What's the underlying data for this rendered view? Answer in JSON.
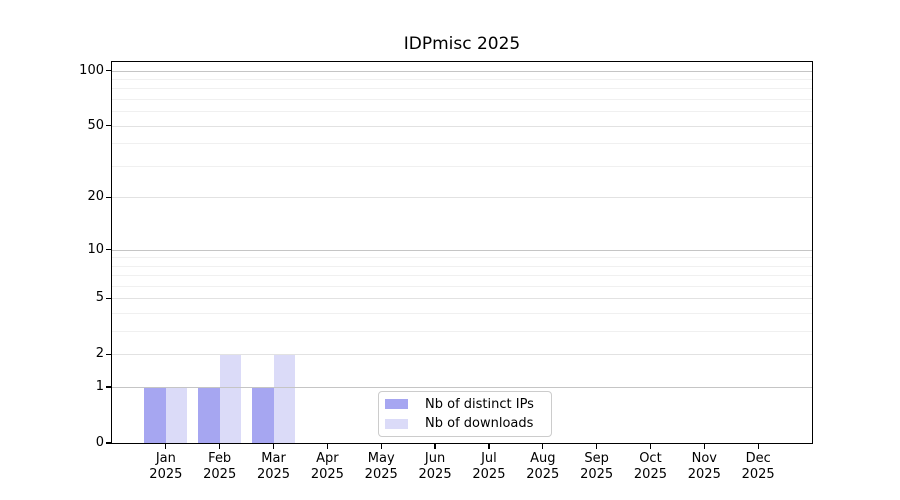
{
  "chart_data": {
    "type": "bar",
    "title": "IDPmisc 2025",
    "categories": [
      "Jan",
      "Feb",
      "Mar",
      "Apr",
      "May",
      "Jun",
      "Jul",
      "Aug",
      "Sep",
      "Oct",
      "Nov",
      "Dec"
    ],
    "x_year_label": "2025",
    "series": [
      {
        "name": "Nb of distinct IPs",
        "color": "#a6a6f1",
        "values": [
          1,
          1,
          1,
          0,
          0,
          0,
          0,
          0,
          0,
          0,
          0,
          0
        ]
      },
      {
        "name": "Nb of downloads",
        "color": "#dbdbf8",
        "values": [
          1,
          2,
          2,
          0,
          0,
          0,
          0,
          0,
          0,
          0,
          0,
          0
        ]
      }
    ],
    "y_axis": {
      "scale": "log1p",
      "ticks": [
        0,
        1,
        2,
        5,
        10,
        20,
        50,
        100
      ],
      "minor_gridlines": [
        3,
        4,
        6,
        7,
        8,
        9,
        30,
        40,
        60,
        70,
        80,
        90
      ],
      "range_top": 112
    },
    "legend": {
      "position": "lower center"
    },
    "grid": true
  },
  "colors": {
    "grid_decade": "#c5c5c5",
    "grid_major": "#e2e2e2",
    "grid_minor": "#f0f0f0",
    "axis_frame": "#000000",
    "text": "#000000",
    "background": "#ffffff"
  }
}
